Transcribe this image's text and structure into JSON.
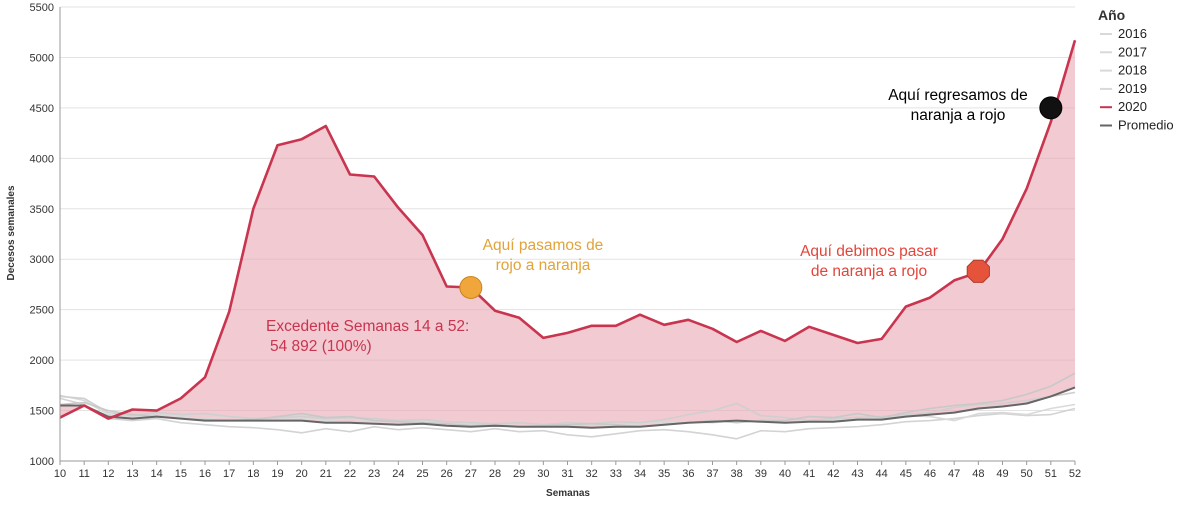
{
  "chart_data": {
    "type": "area",
    "xlabel": "Semanas",
    "ylabel": "Decesos semanales",
    "x": [
      10,
      11,
      12,
      13,
      14,
      15,
      16,
      17,
      18,
      19,
      20,
      21,
      22,
      23,
      24,
      25,
      26,
      27,
      28,
      29,
      30,
      31,
      32,
      33,
      34,
      35,
      36,
      37,
      38,
      39,
      40,
      41,
      42,
      43,
      44,
      45,
      46,
      47,
      48,
      49,
      50,
      51,
      52
    ],
    "xlim": [
      10,
      52
    ],
    "ylim": [
      1000,
      5500
    ],
    "yticks": [
      1000,
      1500,
      2000,
      2500,
      3000,
      3500,
      4000,
      4500,
      5000,
      5500
    ],
    "grid": true,
    "legend": {
      "title": "Año",
      "position": "right",
      "entries": [
        {
          "name": "2016",
          "color": "#d9d9d9"
        },
        {
          "name": "2017",
          "color": "#d9d9d9"
        },
        {
          "name": "2018",
          "color": "#d9d9d9"
        },
        {
          "name": "2019",
          "color": "#d9d9d9"
        },
        {
          "name": "2020",
          "color": "#c9344f"
        },
        {
          "name": "Promedio",
          "color": "#666666"
        }
      ]
    },
    "series": [
      {
        "name": "2016",
        "color": "#d3d3d3",
        "values": [
          1620,
          1560,
          1420,
          1400,
          1420,
          1380,
          1360,
          1340,
          1330,
          1310,
          1280,
          1320,
          1290,
          1340,
          1310,
          1330,
          1310,
          1290,
          1320,
          1290,
          1300,
          1260,
          1240,
          1270,
          1300,
          1310,
          1290,
          1260,
          1220,
          1300,
          1290,
          1320,
          1330,
          1340,
          1360,
          1390,
          1400,
          1420,
          1450,
          1470,
          1450,
          1460,
          1520
        ]
      },
      {
        "name": "2017",
        "color": "#d9d9d9",
        "values": [
          1650,
          1600,
          1460,
          1430,
          1470,
          1440,
          1420,
          1440,
          1400,
          1410,
          1430,
          1400,
          1420,
          1390,
          1390,
          1400,
          1370,
          1360,
          1370,
          1350,
          1350,
          1360,
          1360,
          1350,
          1370,
          1380,
          1390,
          1380,
          1400,
          1390,
          1380,
          1410,
          1400,
          1420,
          1430,
          1450,
          1440,
          1400,
          1470,
          1480,
          1460,
          1520,
          1560
        ]
      },
      {
        "name": "2018",
        "color": "#cfcfcf",
        "values": [
          1640,
          1620,
          1480,
          1450,
          1480,
          1460,
          1470,
          1440,
          1420,
          1430,
          1440,
          1420,
          1430,
          1420,
          1400,
          1410,
          1390,
          1380,
          1370,
          1380,
          1360,
          1380,
          1370,
          1390,
          1380,
          1410,
          1460,
          1500,
          1570,
          1450,
          1430,
          1400,
          1420,
          1430,
          1440,
          1460,
          1480,
          1530,
          1560,
          1570,
          1600,
          1640,
          1680
        ]
      },
      {
        "name": "2019",
        "color": "#c8c8c8",
        "values": [
          1560,
          1580,
          1500,
          1460,
          1440,
          1420,
          1410,
          1400,
          1410,
          1440,
          1470,
          1430,
          1440,
          1400,
          1390,
          1380,
          1370,
          1350,
          1360,
          1340,
          1350,
          1360,
          1370,
          1360,
          1340,
          1360,
          1380,
          1400,
          1380,
          1400,
          1400,
          1440,
          1430,
          1470,
          1430,
          1480,
          1520,
          1550,
          1570,
          1600,
          1660,
          1740,
          1870
        ]
      },
      {
        "name": "Promedio",
        "color": "#666666",
        "values": [
          1550,
          1550,
          1440,
          1420,
          1440,
          1420,
          1400,
          1400,
          1400,
          1400,
          1400,
          1380,
          1380,
          1370,
          1360,
          1370,
          1350,
          1340,
          1350,
          1340,
          1340,
          1340,
          1330,
          1340,
          1340,
          1360,
          1380,
          1390,
          1400,
          1390,
          1380,
          1390,
          1390,
          1410,
          1410,
          1440,
          1460,
          1480,
          1520,
          1540,
          1570,
          1640,
          1730
        ]
      },
      {
        "name": "2020",
        "color": "#c9344f",
        "values": [
          1430,
          1550,
          1420,
          1510,
          1500,
          1620,
          1830,
          2480,
          3500,
          4130,
          4190,
          4320,
          3840,
          3820,
          3510,
          3240,
          2730,
          2720,
          2490,
          2420,
          2220,
          2270,
          2340,
          2340,
          2450,
          2350,
          2400,
          2310,
          2180,
          2290,
          2190,
          2330,
          2250,
          2170,
          2210,
          2530,
          2620,
          2790,
          2870,
          3200,
          3700,
          4360,
          5170
        ]
      }
    ],
    "annotations": [
      {
        "text_lines": [
          "Aquí pasamos de",
          "rojo a naranja"
        ],
        "color": "#e1a33a",
        "week": 27,
        "value": 2720,
        "marker_color": "#f0a63a"
      },
      {
        "text_lines": [
          "Aquí debimos pasar",
          "de naranja a rojo"
        ],
        "color": "#e2453a",
        "week": 48,
        "value": 2880,
        "marker_color": "#e5533a"
      },
      {
        "text_lines": [
          "Aquí regresamos de",
          "naranja a rojo"
        ],
        "color": "#000000",
        "week": 51,
        "value": 4500,
        "marker_color": "#111111"
      },
      {
        "text_lines": [
          "Excedente Semanas 14 a 52:",
          "54 892 (100%)"
        ],
        "color": "#c9344f"
      }
    ]
  }
}
